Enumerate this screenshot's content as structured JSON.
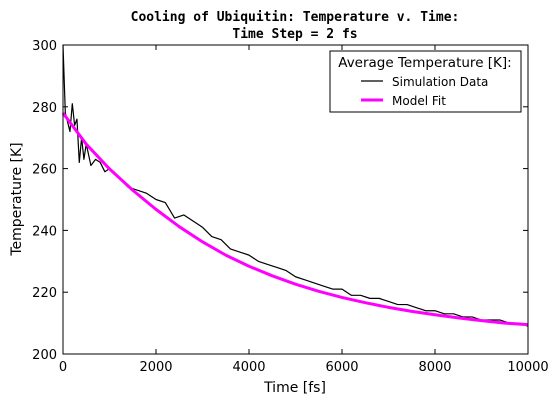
{
  "chart_data": {
    "type": "line",
    "title_line1": "Cooling of Ubiquitin: Temperature v. Time:",
    "title_line2": "Time Step = 2 fs",
    "xlabel": "Time [fs]",
    "ylabel": "Temperature [K]",
    "xlim": [
      0,
      10000
    ],
    "ylim": [
      200,
      300
    ],
    "xticks": [
      0,
      2000,
      4000,
      6000,
      8000,
      10000
    ],
    "yticks": [
      200,
      220,
      240,
      260,
      280,
      300
    ],
    "grid": false,
    "legend": {
      "title": "Average Temperature [K]:",
      "position": "top-right"
    },
    "series": [
      {
        "name": "Simulation Data",
        "color": "#000000",
        "style": "thin-line",
        "x": [
          0,
          50,
          100,
          150,
          200,
          250,
          300,
          350,
          400,
          450,
          500,
          600,
          700,
          800,
          900,
          1000,
          1200,
          1400,
          1600,
          1800,
          2000,
          2200,
          2400,
          2600,
          2800,
          3000,
          3200,
          3400,
          3600,
          3800,
          4000,
          4200,
          4400,
          4600,
          4800,
          5000,
          5200,
          5400,
          5600,
          5800,
          6000,
          6200,
          6400,
          6600,
          6800,
          7000,
          7200,
          7400,
          7600,
          7800,
          8000,
          8200,
          8400,
          8600,
          8800,
          9000,
          9200,
          9400,
          9600,
          9800,
          10000
        ],
        "values": [
          300,
          278,
          275,
          272,
          281,
          274,
          276,
          262,
          270,
          263,
          268,
          261,
          263,
          262,
          259,
          260,
          257,
          254,
          253,
          252,
          250,
          249,
          244,
          245,
          243,
          241,
          238,
          237,
          234,
          233,
          232,
          230,
          229,
          228,
          227,
          225,
          224,
          223,
          222,
          221,
          221,
          219,
          219,
          218,
          218,
          217,
          216,
          216,
          215,
          214,
          214,
          213,
          213,
          212,
          212,
          211,
          211,
          211,
          210,
          210,
          209
        ]
      },
      {
        "name": "Model Fit",
        "color": "#ff00ff",
        "style": "thick-line",
        "x": [
          0,
          500,
          1000,
          1500,
          2000,
          2500,
          3000,
          3500,
          4000,
          4500,
          5000,
          5500,
          6000,
          6500,
          7000,
          7500,
          8000,
          8500,
          9000,
          9500,
          10000
        ],
        "values": [
          278,
          267.9,
          259.9,
          253.0,
          246.8,
          241.2,
          236.3,
          232.0,
          228.4,
          225.3,
          222.6,
          220.3,
          218.3,
          216.6,
          215.1,
          213.8,
          212.7,
          211.7,
          210.8,
          210.0,
          209.5
        ]
      }
    ]
  }
}
